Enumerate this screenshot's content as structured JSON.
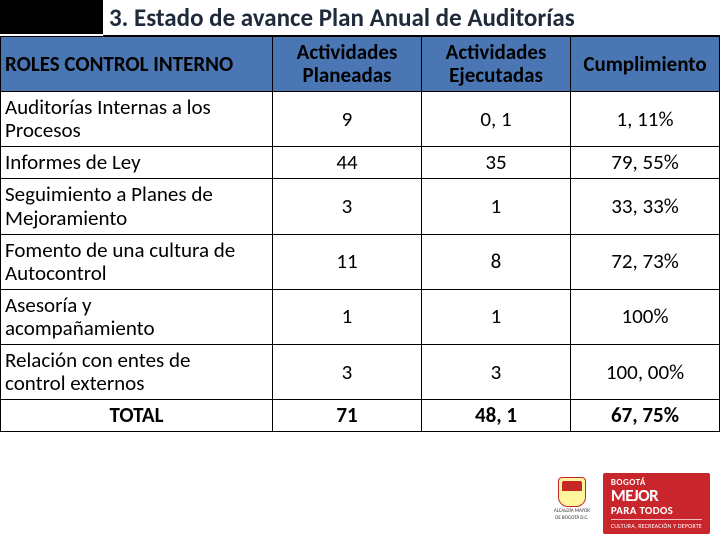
{
  "title": "3. Estado de avance Plan Anual de Auditorías",
  "table": {
    "headers": {
      "role": "ROLES CONTROL INTERNO",
      "planned_l1": "Actividades",
      "planned_l2": "Planeadas",
      "executed_l1": "Actividades",
      "executed_l2": "Ejecutadas",
      "compliance": "Cumplimiento"
    },
    "rows": [
      {
        "role_l1": "Auditorías Internas a los",
        "role_l2": "Procesos",
        "planned": "9",
        "executed": "0, 1",
        "compliance": "1, 11%"
      },
      {
        "role_l1": "Informes de Ley",
        "role_l2": "",
        "planned": "44",
        "executed": "35",
        "compliance": "79, 55%"
      },
      {
        "role_l1": "Seguimiento a Planes de",
        "role_l2": "Mejoramiento",
        "planned": "3",
        "executed": "1",
        "compliance": "33, 33%"
      },
      {
        "role_l1": "Fomento de una cultura de",
        "role_l2": "Autocontrol",
        "planned": "11",
        "executed": "8",
        "compliance": "72, 73%"
      },
      {
        "role_l1": "Asesoría y",
        "role_l2": "acompañamiento",
        "planned": "1",
        "executed": "1",
        "compliance": "100%"
      },
      {
        "role_l1": "Relación con entes de",
        "role_l2": "control externos",
        "planned": "3",
        "executed": "3",
        "compliance": "100, 00%"
      }
    ],
    "total": {
      "label": "TOTAL",
      "planned": "71",
      "executed": "48, 1",
      "compliance": "67, 75%"
    }
  },
  "footer": {
    "seal_line1": "ALCALDÍA MAYOR",
    "seal_line2": "DE BOGOTÁ D.C.",
    "logo_top": "BOGOTÁ",
    "logo_main": "MEJOR",
    "logo_sub": "PARA TODOS",
    "logo_dept": "CULTURA, RECREACIÓN Y DEPORTE"
  },
  "style": {
    "header_bg": "#4a77b4",
    "border_color": "#000000",
    "title_color": "#1f2a3a",
    "logo_bg": "#c9252c",
    "font_title": 25,
    "font_cell": 21
  }
}
